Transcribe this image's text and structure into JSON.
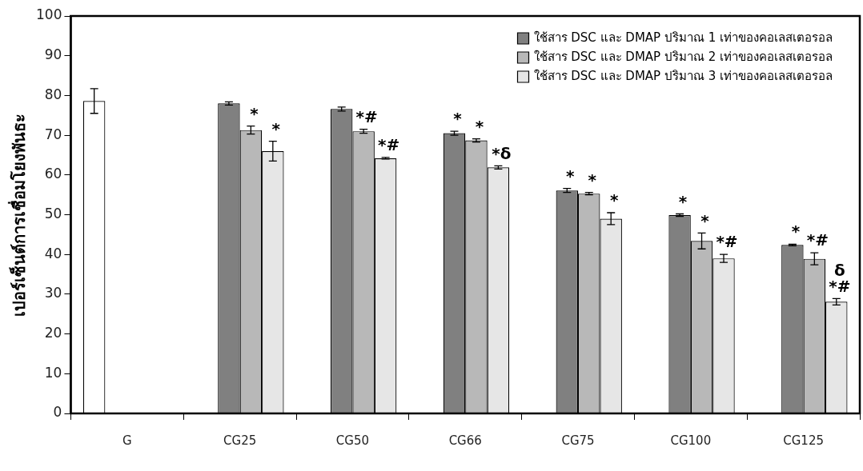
{
  "chart_data": {
    "type": "bar",
    "ylabel": "เปอร์เซ็นต์การเชื่อมโยงพันธะ",
    "categories": [
      "G",
      "CG25",
      "CG50",
      "CG66",
      "CG75",
      "CG100",
      "CG125"
    ],
    "ylim": [
      0,
      100
    ],
    "yticks": [
      0,
      10,
      20,
      30,
      40,
      50,
      60,
      70,
      80,
      90,
      100
    ],
    "grid": false,
    "legend": "top right",
    "series": [
      {
        "color": "#ffffff",
        "values": [
          78.6,
          null,
          null,
          null,
          null,
          null,
          null
        ],
        "errors": [
          3.1,
          null,
          null,
          null,
          null,
          null,
          null
        ]
      },
      {
        "name": "ใช้สาร DSC และ DMAP ปริมาณ 1 เท่าของคอเลสเตอรอล",
        "color": "#808080",
        "values": [
          null,
          78.0,
          76.6,
          70.5,
          56.1,
          49.9,
          42.4
        ],
        "errors": [
          null,
          0.4,
          0.5,
          0.5,
          0.5,
          0.3,
          0.2
        ],
        "value_labels": [
          null,
          null,
          null,
          "*",
          "*",
          "*",
          "*"
        ]
      },
      {
        "name": "ใช้สาร DSC และ DMAP ปริมาณ 2 เท่าของคอเลสเตอรอล",
        "color": "#b8b8b8",
        "values": [
          null,
          71.3,
          71.0,
          68.7,
          55.3,
          43.4,
          38.9
        ],
        "errors": [
          null,
          1.0,
          0.5,
          0.4,
          0.3,
          2.0,
          1.5
        ],
        "value_labels": [
          null,
          "*",
          "*#",
          "*",
          "*",
          "*",
          "*#"
        ]
      },
      {
        "name": "ใช้สาร DSC และ DMAP ปริมาณ 3 เท่าของคอเลสเตอรอล",
        "color": "#e6e6e6",
        "values": [
          null,
          66.0,
          64.2,
          61.9,
          49.0,
          39.0,
          28.1
        ],
        "errors": [
          null,
          2.5,
          0.2,
          0.4,
          1.5,
          1.0,
          0.8
        ],
        "value_labels": [
          null,
          "*",
          "*#",
          "*δ",
          "*",
          "*#",
          "δ\n*#"
        ]
      }
    ]
  }
}
